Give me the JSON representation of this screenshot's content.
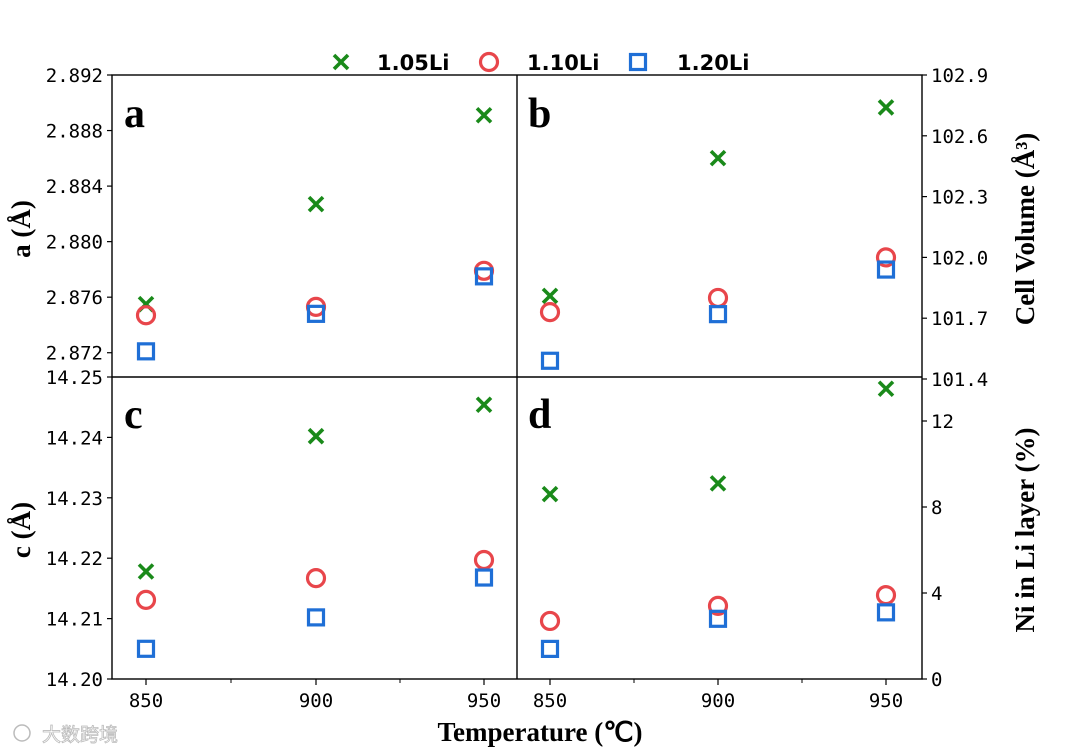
{
  "chart_data": {
    "type": "scatter",
    "colors": {
      "1.05Li": "#1a8a1a",
      "1.10Li": "#e8464b",
      "1.20Li": "#1f6fd6"
    },
    "legend": [
      {
        "label": "1.05Li",
        "marker": "x"
      },
      {
        "label": "1.10Li",
        "marker": "circle"
      },
      {
        "label": "1.20Li",
        "marker": "square"
      }
    ],
    "xlabel": "Temperature (℃)",
    "x_ticks": [
      "850",
      "900",
      "950"
    ],
    "panels": [
      {
        "label": "a",
        "ylabel": "a (Å)",
        "ylabel_side": "left",
        "ylim": [
          2.87,
          2.892
        ],
        "y_ticks": [
          "2.892",
          "2.888",
          "2.884",
          "2.880",
          "2.876",
          "2.872"
        ],
        "x": [
          850,
          900,
          950
        ],
        "series": [
          {
            "name": "1.05Li",
            "values": [
              2.8755,
              2.8827,
              2.8891
            ]
          },
          {
            "name": "1.10Li",
            "values": [
              2.8747,
              2.8753,
              2.8779
            ]
          },
          {
            "name": "1.20Li",
            "values": [
              2.8721,
              2.8748,
              2.8775
            ]
          }
        ]
      },
      {
        "label": "b",
        "ylabel": "Cell Volume (Å³)",
        "ylabel_side": "right",
        "ylim": [
          101.4,
          102.9
        ],
        "y_ticks": [
          "102.9",
          "102.6",
          "102.3",
          "102.0",
          "101.7",
          "101.4"
        ],
        "x": [
          850,
          900,
          950
        ],
        "series": [
          {
            "name": "1.05Li",
            "values": [
              101.81,
              102.49,
              102.74
            ]
          },
          {
            "name": "1.10Li",
            "values": [
              101.73,
              101.8,
              102.0
            ]
          },
          {
            "name": "1.20Li",
            "values": [
              101.49,
              101.72,
              101.94
            ]
          }
        ]
      },
      {
        "label": "c",
        "ylabel": "c (Å)",
        "ylabel_side": "left",
        "ylim": [
          14.2,
          14.25
        ],
        "y_ticks": [
          "14.25",
          "14.24",
          "14.23",
          "14.22",
          "14.21",
          "14.20"
        ],
        "x": [
          850,
          900,
          950
        ],
        "series": [
          {
            "name": "1.05Li",
            "values": [
              14.2178,
              14.2402,
              14.2454
            ]
          },
          {
            "name": "1.10Li",
            "values": [
              14.2131,
              14.2167,
              14.2197
            ]
          },
          {
            "name": "1.20Li",
            "values": [
              14.205,
              14.2102,
              14.2168
            ]
          }
        ]
      },
      {
        "label": "d",
        "ylabel": "Ni in Li layer (%)",
        "ylabel_side": "right",
        "ylim": [
          0,
          14
        ],
        "y_ticks": [
          "12",
          "8",
          "4",
          "0"
        ],
        "x": [
          850,
          900,
          950
        ],
        "series": [
          {
            "name": "1.05Li",
            "values": [
              8.6,
              9.1,
              13.5
            ]
          },
          {
            "name": "1.10Li",
            "values": [
              2.7,
              3.4,
              3.9
            ]
          },
          {
            "name": "1.20Li",
            "values": [
              1.4,
              2.8,
              3.1
            ]
          }
        ]
      }
    ]
  },
  "watermark": "大数跨境"
}
